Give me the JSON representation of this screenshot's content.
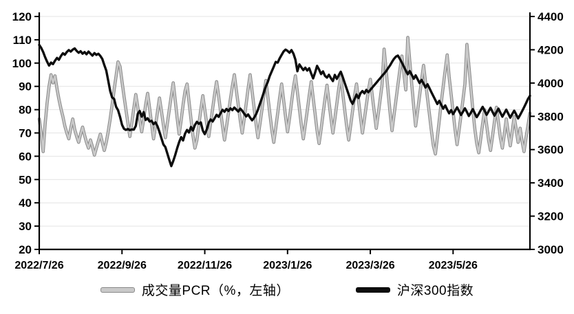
{
  "chart_data": {
    "type": "line",
    "title": "",
    "grid": true,
    "legend_position": "bottom",
    "background": "#ffffff",
    "gridline_color": "#e3e3e3",
    "axis_color": "#000000",
    "x_tick_labels": [
      "2022/7/26",
      "2022/9/26",
      "2022/11/26",
      "2023/1/26",
      "2023/3/26",
      "2023/5/26"
    ],
    "x_tick_indices": [
      0,
      42,
      84,
      126,
      168,
      210
    ],
    "axes": {
      "left": {
        "min": 20,
        "max": 120,
        "step": 10,
        "tick_labels": [
          "120",
          "110",
          "100",
          "90",
          "80",
          "70",
          "60",
          "50",
          "40",
          "30",
          "20"
        ]
      },
      "right": {
        "min": 3000,
        "max": 4400,
        "step": 200,
        "tick_labels": [
          "4400",
          "4200",
          "4000",
          "3800",
          "3600",
          "3400",
          "3200",
          "3000"
        ]
      }
    },
    "legend": [
      {
        "label": "成交量PCR（%，左轴）",
        "color": "#c9c9c9",
        "edge": "#8a8a8a"
      },
      {
        "label": "沪深300指数",
        "color": "#0d0d0d",
        "edge": "#0d0d0d"
      }
    ],
    "series": [
      {
        "name": "成交量PCR（%，左轴）",
        "axis": "left",
        "color": "#c9c9c9",
        "outline": "#8a8a8a",
        "width": 2.6,
        "values": [
          76,
          70,
          62,
          74,
          83,
          90,
          95,
          91.5,
          94.5,
          89,
          84.5,
          80.5,
          77,
          73,
          70,
          67.5,
          72,
          76,
          71.5,
          68.5,
          66,
          69.5,
          72.5,
          69,
          66,
          63.5,
          67,
          64,
          60.5,
          63.5,
          66.5,
          69.5,
          66,
          62.5,
          66,
          70.5,
          76,
          82,
          88.5,
          94.5,
          100.5,
          98.5,
          92,
          86,
          80,
          74,
          68.5,
          74.5,
          80.5,
          86.5,
          81,
          75.5,
          70.5,
          76,
          82,
          87,
          80.5,
          74,
          67.5,
          73,
          79,
          85,
          79.5,
          73.5,
          68,
          74,
          80,
          86,
          91.5,
          84,
          76.5,
          69.5,
          75.5,
          82,
          88,
          91,
          83.5,
          76,
          69,
          63.5,
          67,
          73.5,
          80,
          86,
          80,
          74,
          68.5,
          74.5,
          80.5,
          86.5,
          92,
          86,
          79.5,
          73,
          67,
          72.5,
          78.5,
          84.5,
          90,
          95,
          88.5,
          82,
          75.5,
          70,
          76,
          82.5,
          89,
          95,
          88,
          81,
          74,
          68,
          74,
          80,
          86.5,
          92.5,
          85.5,
          78.5,
          71.5,
          66,
          72,
          78.5,
          85,
          91,
          84,
          77,
          70.5,
          76.5,
          83,
          89.5,
          94.5,
          87.5,
          80.5,
          73.5,
          67.5,
          73.5,
          79.5,
          86,
          92,
          85,
          78,
          71,
          65.5,
          71.5,
          78,
          84.5,
          90.5,
          83.5,
          76.5,
          70,
          76,
          82.5,
          89,
          94,
          87,
          80,
          73,
          67,
          73,
          79.5,
          86,
          91,
          84,
          77,
          70,
          76,
          82,
          88,
          93,
          86,
          79,
          72,
          78,
          84.5,
          91,
          106,
          97,
          88,
          79,
          71,
          77.5,
          84,
          90.5,
          97,
          103,
          96,
          88.5,
          111,
          101,
          91,
          81.5,
          73,
          79.5,
          86,
          92.5,
          99,
          92,
          85,
          78,
          71,
          64.5,
          61,
          68,
          75.5,
          83,
          90,
          97,
          103.5,
          94,
          86.5,
          79,
          71.5,
          65,
          71,
          77.5,
          84,
          91,
          108,
          99,
          89.5,
          80,
          72,
          65.5,
          61.5,
          67.5,
          74,
          80,
          73.5,
          67,
          62.5,
          68.5,
          75,
          81,
          74.5,
          68,
          63.5,
          69.5,
          76,
          70,
          64.5,
          70.5,
          77,
          71.5,
          66,
          72,
          66.5,
          62,
          68,
          73,
          78.5
        ]
      },
      {
        "name": "沪深300指数",
        "axis": "right",
        "color": "#0d0d0d",
        "width": 3.4,
        "values": [
          4229,
          4211,
          4187,
          4155,
          4128,
          4105,
          4123,
          4114,
          4134,
          4151,
          4140,
          4162,
          4179,
          4170,
          4187,
          4198,
          4189,
          4201,
          4208,
          4193,
          4182,
          4191,
          4176,
          4186,
          4173,
          4189,
          4177,
          4165,
          4180,
          4169,
          4176,
          4163,
          4145,
          4109,
          4075,
          4015,
          3952,
          3914,
          3904,
          3857,
          3837,
          3797,
          3749,
          3725,
          3718,
          3724,
          3717,
          3721,
          3720,
          3742,
          3815,
          3832,
          3798,
          3825,
          3778,
          3788,
          3769,
          3773,
          3753,
          3764,
          3741,
          3706,
          3669,
          3631,
          3615,
          3577,
          3538,
          3501,
          3531,
          3568,
          3608,
          3645,
          3675,
          3655,
          3696,
          3718,
          3703,
          3736,
          3715,
          3748,
          3767,
          3755,
          3763,
          3714,
          3693,
          3721,
          3762,
          3781,
          3769,
          3788,
          3809,
          3797,
          3818,
          3839,
          3827,
          3844,
          3832,
          3848,
          3837,
          3853,
          3841,
          3829,
          3846,
          3833,
          3816,
          3799,
          3811,
          3792,
          3776,
          3791,
          3812,
          3840,
          3875,
          3910,
          3945,
          3980,
          4008,
          4043,
          4071,
          4099,
          4127,
          4123,
          4148,
          4169,
          4190,
          4201,
          4193,
          4182,
          4198,
          4176,
          4141,
          4071,
          4112,
          4095,
          4078,
          4092,
          4075,
          4089,
          4057,
          4028,
          4064,
          4103,
          4081,
          4054,
          4070,
          4043,
          4033,
          4050,
          4029,
          4012,
          4049,
          4025,
          4047,
          4068,
          4036,
          4001,
          3966,
          3931,
          3896,
          3875,
          3903,
          3931,
          3910,
          3938,
          3952,
          3938,
          3959,
          3945,
          3959,
          3973,
          3987,
          4001,
          4015,
          4029,
          4043,
          4057,
          4071,
          4089,
          4106,
          4127,
          4145,
          4159,
          4165,
          4145,
          4123,
          4099,
          4075,
          4053,
          4072,
          4050,
          4026,
          4046,
          4023,
          4000,
          4019,
          3997,
          3973,
          3993,
          3969,
          3945,
          3921,
          3897,
          3874,
          3893,
          3869,
          3846,
          3865,
          3841,
          3818,
          3837,
          3813,
          3833,
          3854,
          3832,
          3808,
          3827,
          3848,
          3826,
          3802,
          3822,
          3843,
          3819,
          3795,
          3815,
          3836,
          3857,
          3833,
          3809,
          3830,
          3851,
          3827,
          3804,
          3825,
          3846,
          3822,
          3798,
          3819,
          3840,
          3816,
          3792,
          3813,
          3834,
          3811,
          3787,
          3808,
          3830,
          3854,
          3879,
          3904,
          3923
        ]
      }
    ]
  }
}
